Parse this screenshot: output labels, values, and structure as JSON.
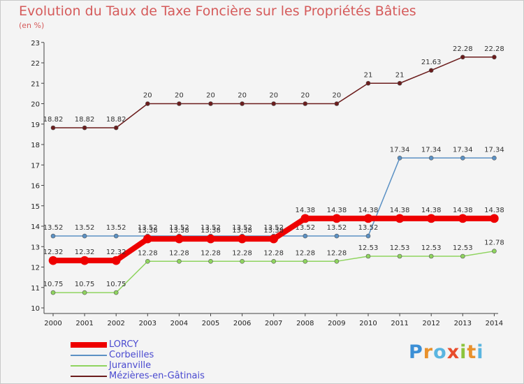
{
  "title": "Evolution du Taux de Taxe Foncière sur les Propriétés Bâties",
  "unit_label": "(en %)",
  "logo": {
    "letters": [
      "P",
      "r",
      "o",
      "x",
      "i",
      "t",
      "i"
    ],
    "colors": [
      "#3b8fd6",
      "#e8912c",
      "#5ab5e0",
      "#e84c2c",
      "#8cc43c",
      "#e8912c",
      "#5ab5e0"
    ]
  },
  "chart_data": {
    "type": "line",
    "title": "Evolution du Taux de Taxe Foncière sur les Propriétés Bâties",
    "ylabel": "(en %)",
    "xlabel": "",
    "categories": [
      "2000",
      "2001",
      "2002",
      "2003",
      "2004",
      "2005",
      "2006",
      "2007",
      "2008",
      "2009",
      "2010",
      "2011",
      "2012",
      "2013",
      "2014"
    ],
    "ylim": [
      10,
      23
    ],
    "yticks": [
      "10",
      "11",
      "12",
      "13",
      "14",
      "15",
      "16",
      "17",
      "18",
      "19",
      "20",
      "21",
      "22",
      "23"
    ],
    "grid": false,
    "legend_position": "bottom-left",
    "series": [
      {
        "name": "Mézières-en-Gâtinais",
        "color": "#6b1c1c",
        "width": 1.5,
        "values": [
          18.82,
          18.82,
          18.82,
          20,
          20,
          20,
          20,
          20,
          20,
          20,
          21,
          21,
          21.63,
          22.28,
          22.28
        ],
        "labels": [
          "18.82",
          "18.82",
          "18.82",
          "20",
          "20",
          "20",
          "20",
          "20",
          "20",
          "20",
          "21",
          "21",
          "21.63",
          "22.28",
          "22.28"
        ]
      },
      {
        "name": "Corbeilles",
        "color": "#5b91c4",
        "width": 1.5,
        "values": [
          13.52,
          13.52,
          13.52,
          13.52,
          13.52,
          13.52,
          13.52,
          13.52,
          13.52,
          13.52,
          13.52,
          17.34,
          17.34,
          17.34,
          17.34
        ],
        "labels": [
          "13.52",
          "13.52",
          "13.52",
          "13.52",
          "13.52",
          "13.52",
          "13.52",
          "13.52",
          "13.52",
          "13.52",
          "13.52",
          "17.34",
          "17.34",
          "17.34",
          "17.34"
        ]
      },
      {
        "name": "Juranville",
        "color": "#8fd45f",
        "width": 1.5,
        "values": [
          10.75,
          10.75,
          10.75,
          12.28,
          12.28,
          12.28,
          12.28,
          12.28,
          12.28,
          12.28,
          12.53,
          12.53,
          12.53,
          12.53,
          12.78
        ],
        "labels": [
          "10.75",
          "10.75",
          "10.75",
          "12.28",
          "12.28",
          "12.28",
          "12.28",
          "12.28",
          "12.28",
          "12.28",
          "12.53",
          "12.53",
          "12.53",
          "12.53",
          "12.78"
        ]
      },
      {
        "name": "LORCY",
        "color": "#ee0000",
        "width": 8,
        "values": [
          12.32,
          12.32,
          12.32,
          13.38,
          13.38,
          13.38,
          13.38,
          13.38,
          14.38,
          14.38,
          14.38,
          14.38,
          14.38,
          14.38,
          14.38
        ],
        "labels": [
          "12.32",
          "12.32",
          "12.32",
          "13.38",
          "13.38",
          "13.38",
          "13.38",
          "13.38",
          "14.38",
          "14.38",
          "14.38",
          "14.38",
          "14.38",
          "14.38",
          "14.38"
        ]
      }
    ],
    "legend": [
      "LORCY",
      "Corbeilles",
      "Juranville",
      "Mézières-en-Gâtinais"
    ]
  }
}
